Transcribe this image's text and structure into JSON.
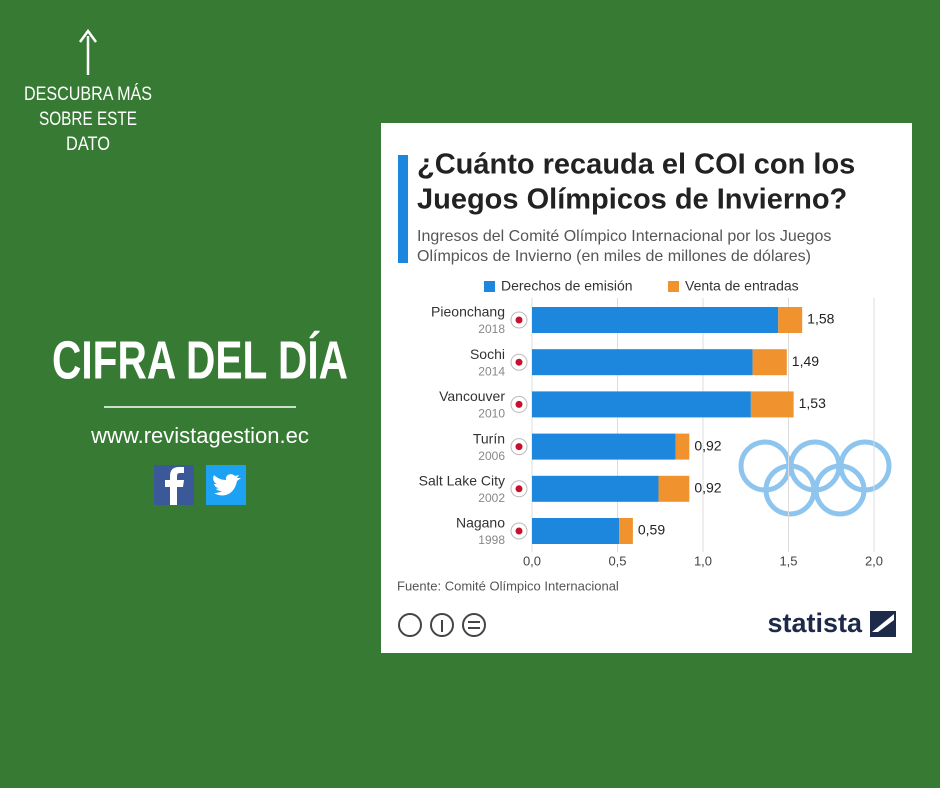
{
  "side_panel": {
    "cta": [
      "DESCUBRA MÁS",
      "SOBRE ESTE",
      "DATO"
    ],
    "heading": "CIFRA DEL DÍA",
    "website": "www.revistagestion.ec"
  },
  "chart_data": {
    "type": "stacked-bar-horizontal",
    "title": [
      "¿Cuánto recauda el COI con los",
      "Juegos Olímpicos de Invierno?"
    ],
    "subtitle": [
      "Ingresos del Comité Olímpico Internacional por los Juegos",
      "Olímpicos de Invierno (en miles de millones de dólares)"
    ],
    "categories": [
      "Pieonchang",
      "Sochi",
      "Vancouver",
      "Turín",
      "Salt Lake City",
      "Nagano"
    ],
    "years": [
      "2018",
      "2014",
      "2010",
      "2006",
      "2002",
      "1998"
    ],
    "series": [
      {
        "name": "Derechos de emisión",
        "color": "#1c87dc",
        "values": [
          1.44,
          1.29,
          1.28,
          0.84,
          0.74,
          0.51
        ]
      },
      {
        "name": "Venta de entradas",
        "color": "#f0922e",
        "values": [
          0.14,
          0.2,
          0.25,
          0.08,
          0.18,
          0.08
        ]
      }
    ],
    "totals": [
      1.58,
      1.49,
      1.53,
      0.92,
      0.92,
      0.59
    ],
    "total_labels": [
      "1,58",
      "1,49",
      "1,53",
      "0,92",
      "0,92",
      "0,59"
    ],
    "xlim": [
      0,
      2.0
    ],
    "xticks": [
      {
        "value": 0,
        "label": "0,0"
      },
      {
        "value": 0.5,
        "label": "0,5"
      },
      {
        "value": 1.0,
        "label": "1,0"
      },
      {
        "value": 1.5,
        "label": "1,5"
      },
      {
        "value": 2.0,
        "label": "2,0"
      }
    ],
    "grid": true,
    "source": "Fuente: Comité Olímpico Internacional",
    "brand": "statista"
  }
}
